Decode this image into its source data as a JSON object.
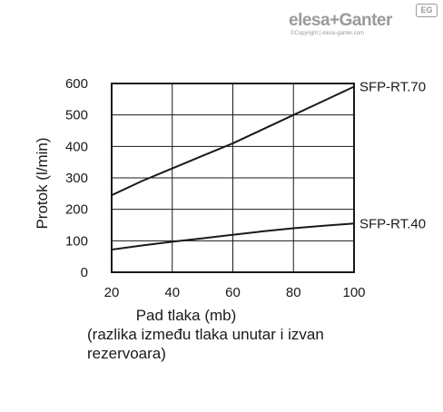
{
  "brand": {
    "name": "elesa+Ganter",
    "badge": "EG",
    "copyright": "©Copyright | elesa-ganter.com"
  },
  "chart_data": {
    "type": "line",
    "title": "",
    "xlabel": "Pad tlaka (mb)",
    "xlabel_note": "(razlika između tlaka unutar i izvan rezervoara)",
    "ylabel": "Protok  (l/min)",
    "xlim": [
      20,
      100
    ],
    "ylim": [
      0,
      600
    ],
    "xticks": [
      20,
      40,
      60,
      80,
      100
    ],
    "yticks": [
      0,
      100,
      200,
      300,
      400,
      500,
      600
    ],
    "grid": true,
    "legend": "labels at line ends (right)",
    "series": [
      {
        "name": "SFP-RT.70",
        "x": [
          20,
          30,
          40,
          50,
          60,
          70,
          80,
          90,
          100
        ],
        "y": [
          245,
          290,
          330,
          370,
          410,
          455,
          500,
          545,
          590
        ]
      },
      {
        "name": "SFP-RT.40",
        "x": [
          20,
          30,
          40,
          50,
          60,
          70,
          80,
          90,
          100
        ],
        "y": [
          72,
          85,
          97,
          108,
          119,
          130,
          140,
          148,
          155
        ]
      }
    ],
    "colors": {
      "line": "#1a1a1a",
      "grid": "#1a1a1a"
    }
  }
}
